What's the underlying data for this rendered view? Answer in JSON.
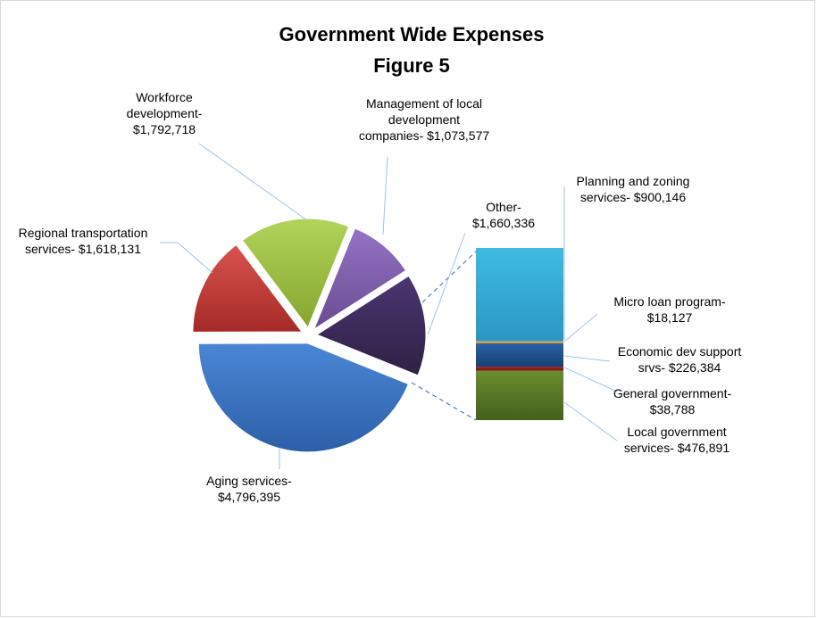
{
  "chart_data": {
    "type": "pie",
    "subtype": "bar-of-pie",
    "title": "Government Wide Expenses",
    "subtitle": "Figure 5",
    "slices": [
      {
        "name": "Aging services",
        "value": 4796395,
        "label_lines": [
          "Aging services-",
          "$4,796,395"
        ],
        "color": "#3a6fbf"
      },
      {
        "name": "Regional transportation services",
        "value": 1618131,
        "label_lines": [
          "Regional transportation",
          "services- $1,618,131"
        ],
        "color": "#c0392b"
      },
      {
        "name": "Workforce development",
        "value": 1792718,
        "label_lines": [
          "Workforce",
          "development-",
          "$1,792,718"
        ],
        "color": "#9bbb39"
      },
      {
        "name": "Management of local development companies",
        "value": 1073577,
        "label_lines": [
          "Management of local",
          "development",
          "companies- $1,073,577"
        ],
        "color": "#7d5ba6"
      },
      {
        "name": "Other",
        "value": 1660336,
        "label_lines": [
          "Other-",
          "$1,660,336"
        ],
        "color": "#3f2c5c"
      }
    ],
    "breakout": {
      "of": "Other",
      "segments": [
        {
          "name": "Local government services",
          "value": 476891,
          "label_lines": [
            "Local government",
            "services- $476,891"
          ],
          "color": "#4f6b22"
        },
        {
          "name": "General government",
          "value": 38788,
          "label_lines": [
            "General government-",
            "$38,788"
          ],
          "color": "#8b1c1c"
        },
        {
          "name": "Economic dev support srvs",
          "value": 226384,
          "label_lines": [
            "Economic dev support",
            "srvs- $226,384"
          ],
          "color": "#1f4e8c"
        },
        {
          "name": "Micro loan program",
          "value": 18127,
          "label_lines": [
            "Micro loan program-",
            "$18,127"
          ],
          "color": "#f0a030"
        },
        {
          "name": "Planning and zoning services",
          "value": 900146,
          "label_lines": [
            "Planning and zoning",
            "services- $900,146"
          ],
          "color": "#3bb0d8"
        }
      ]
    },
    "legend": "none",
    "grid": false
  }
}
